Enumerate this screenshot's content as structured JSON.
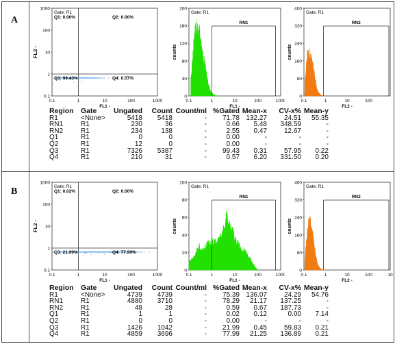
{
  "panels": [
    {
      "letter": "A",
      "scatter": {
        "gate": "Gate: R1",
        "y_label": "FL2 -",
        "x_label": "FL1 -",
        "x_ticks": [
          "0.1",
          "1",
          "10",
          "100",
          "1000"
        ],
        "y_ticks": [
          "1000",
          "100",
          "10",
          "1",
          "0.1"
        ],
        "q1": "Q1: 0.00%",
        "q2": "Q2: 0.00%",
        "q3": "Q3: 99.43%",
        "q4": "Q4: 0.57%",
        "cluster_color": "#5aa6e8",
        "cluster": {
          "x_center": 0.25,
          "x_spread": 0.18,
          "y_center": 0.35,
          "y_spread": 0.12,
          "count": 700
        }
      },
      "hist1": {
        "chart_data": {
          "type": "area",
          "gate": "Gate: R1",
          "region": "RN1",
          "color": "#22e000",
          "ylabel": "counts",
          "xlabel": "FL1 -",
          "xscale": "log",
          "xlim": [
            0.1,
            1000
          ],
          "ylim": [
            0,
            200
          ],
          "y_ticks": [
            "200",
            "160",
            "120",
            "80",
            "40",
            "0"
          ],
          "x_ticks": [
            "0.1",
            "1",
            "10",
            "100",
            "1000"
          ],
          "region_range": [
            1.0,
            600
          ],
          "x": [
            0.12,
            0.15,
            0.18,
            0.22,
            0.27,
            0.33,
            0.4,
            0.5,
            0.6,
            0.7,
            0.85,
            1.0,
            1.3,
            1.8
          ],
          "values": [
            40,
            95,
            140,
            165,
            150,
            125,
            100,
            70,
            45,
            28,
            14,
            6,
            2,
            0
          ]
        }
      },
      "hist2": {
        "chart_data": {
          "type": "area",
          "gate": "Gate: R1",
          "region": "RN2",
          "color": "#f07b10",
          "ylabel": "counts",
          "xlabel": "FL2 -",
          "xscale": "log",
          "xlim": [
            0.1,
            1000
          ],
          "ylim": [
            0,
            400
          ],
          "y_ticks": [
            "400",
            "320",
            "240",
            "160",
            "80",
            "0"
          ],
          "x_ticks": [
            "0.1",
            "1",
            "10",
            "100"
          ],
          "region_range": [
            0.8,
            1000
          ],
          "x": [
            0.11,
            0.13,
            0.16,
            0.2,
            0.24,
            0.28,
            0.33,
            0.38,
            0.45,
            0.55,
            0.7,
            0.9
          ],
          "values": [
            60,
            150,
            210,
            190,
            160,
            120,
            80,
            45,
            20,
            8,
            2,
            0
          ]
        }
      },
      "table": {
        "headers": [
          "Region",
          "Gate",
          "Ungated",
          "Count",
          "Count/ml",
          "%Gated",
          "Mean-x",
          "CV-x%",
          "Mean-y"
        ],
        "rows": [
          [
            "R1",
            "<None>",
            "5418",
            "5418",
            "-",
            "71.78",
            "132.27",
            "24.51",
            "55.35"
          ],
          [
            "RN1",
            "R1",
            "230",
            "36",
            "-",
            "0.66",
            "5.48",
            "348.59",
            "-"
          ],
          [
            "RN2",
            "R1",
            "234",
            "138",
            "-",
            "2.55",
            "0.47",
            "12.67",
            "-"
          ],
          [
            "Q1",
            "R1",
            "0",
            "0",
            "-",
            "0.00",
            "-",
            "-",
            "-"
          ],
          [
            "Q2",
            "R1",
            "12",
            "0",
            "-",
            "0.00",
            "-",
            "-",
            "-"
          ],
          [
            "Q3",
            "R1",
            "7326",
            "5387",
            "-",
            "99.43",
            "0.31",
            "57.95",
            "0.22"
          ],
          [
            "Q4",
            "R1",
            "210",
            "31",
            "-",
            "0.57",
            "6.20",
            "331.50",
            "0.20"
          ]
        ]
      }
    },
    {
      "letter": "B",
      "scatter": {
        "gate": "Gate: R1",
        "y_label": "FL2 -",
        "x_label": "FL1 -",
        "x_ticks": [
          "0.1",
          "1",
          "10",
          "100",
          "1000"
        ],
        "y_ticks": [
          "1000",
          "100",
          "10",
          "1",
          "0.1"
        ],
        "q1": "Q1: 0.02%",
        "q2": "Q2: 0.00%",
        "q3": "Q3: 21.99%",
        "q4": "Q4: 77.99%",
        "cluster_color": "#5aa6e8",
        "cluster": {
          "x_center": 0.42,
          "x_spread": 0.3,
          "y_center": 0.35,
          "y_spread": 0.12,
          "count": 1300
        }
      },
      "hist1": {
        "chart_data": {
          "type": "area",
          "gate": "Gate: R1",
          "region": "RN1",
          "color": "#22e000",
          "ylabel": "counts",
          "xlabel": "FL1 -",
          "xscale": "log",
          "xlim": [
            0.1,
            1000
          ],
          "ylim": [
            0,
            100
          ],
          "y_ticks": [
            "100",
            "80",
            "60",
            "40",
            "20",
            "0"
          ],
          "x_ticks": [
            "0.1",
            "1",
            "10",
            "100",
            "1000"
          ],
          "region_range": [
            1.0,
            600
          ],
          "x": [
            0.1,
            0.15,
            0.2,
            0.3,
            0.5,
            0.7,
            1.0,
            1.5,
            2.0,
            3.0,
            4.0,
            5.0,
            6.0,
            8.0,
            10,
            15,
            20,
            30,
            50,
            70,
            100
          ],
          "values": [
            10,
            14,
            20,
            28,
            26,
            30,
            35,
            32,
            38,
            48,
            58,
            64,
            50,
            44,
            38,
            30,
            26,
            20,
            12,
            5,
            0
          ]
        }
      },
      "hist2": {
        "chart_data": {
          "type": "area",
          "gate": "Gate: R1",
          "region": "RN2",
          "color": "#f07b10",
          "ylabel": "counts",
          "xlabel": "FL2 -",
          "xscale": "log",
          "xlim": [
            0.1,
            1000
          ],
          "ylim": [
            0,
            400
          ],
          "y_ticks": [
            "400",
            "320",
            "240",
            "160",
            "80",
            "0"
          ],
          "x_ticks": [
            "0.1",
            "1",
            "10",
            "100",
            "10"
          ],
          "region_range": [
            0.8,
            1000
          ],
          "x": [
            0.11,
            0.13,
            0.16,
            0.2,
            0.24,
            0.28,
            0.33,
            0.38,
            0.45,
            0.55,
            0.7,
            0.9
          ],
          "values": [
            50,
            130,
            210,
            220,
            180,
            130,
            85,
            50,
            22,
            9,
            2,
            0
          ]
        }
      },
      "table": {
        "headers": [
          "Region",
          "Gate",
          "Ungated",
          "Count",
          "Count/ml",
          "%Gated",
          "Mean-x",
          "CV-x%",
          "Mean-y"
        ],
        "rows": [
          [
            "R1",
            "<None>",
            "4739",
            "4739",
            "-",
            "75.39",
            "136.07",
            "24.29",
            "54.76"
          ],
          [
            "RN1",
            "R1",
            "4880",
            "3710",
            "-",
            "78.29",
            "21.17",
            "137.25",
            "-"
          ],
          [
            "RN2",
            "R1",
            "48",
            "28",
            "-",
            "0.59",
            "0.67",
            "187.73",
            "-"
          ],
          [
            "Q1",
            "R1",
            "1",
            "1",
            "-",
            "0.02",
            "0.12",
            "0.00",
            "7.14"
          ],
          [
            "Q2",
            "R1",
            "0",
            "0",
            "-",
            "0.00",
            "-",
            "-",
            "-"
          ],
          [
            "Q3",
            "R1",
            "1426",
            "1042",
            "-",
            "21.99",
            "0.45",
            "59.83",
            "0.21"
          ],
          [
            "Q4",
            "R1",
            "4859",
            "3696",
            "-",
            "77.99",
            "21.25",
            "136.89",
            "0.21"
          ]
        ]
      }
    }
  ]
}
